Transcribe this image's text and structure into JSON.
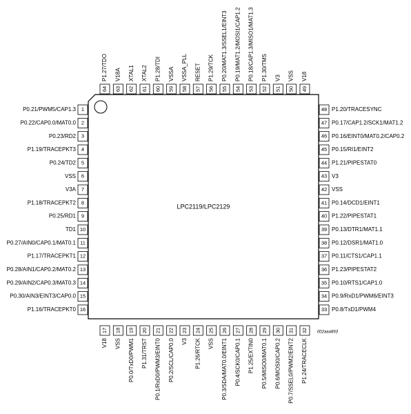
{
  "chip_label": "LPC2119/LPC2129",
  "figure_id": "002aaa693",
  "left_pins": [
    {
      "number": "1",
      "label": "P0.21/PWM5/CAP1.3"
    },
    {
      "number": "2",
      "label": "P0.22/CAP0.0/MAT0.0"
    },
    {
      "number": "3",
      "label": "P0.23/RD2"
    },
    {
      "number": "4",
      "label": "P1.19/TRACEPKT3"
    },
    {
      "number": "5",
      "label": "P0.24/TD2"
    },
    {
      "number": "6",
      "label": "VSS"
    },
    {
      "number": "7",
      "label": "V3A"
    },
    {
      "number": "8",
      "label": "P1.18/TRACEPKT2"
    },
    {
      "number": "9",
      "label": "P0.25/RD1"
    },
    {
      "number": "10",
      "label": "TD1"
    },
    {
      "number": "11",
      "label": "P0.27/AIN0/CAP0.1/MAT0.1"
    },
    {
      "number": "12",
      "label": "P1.17/TRACEPKT1"
    },
    {
      "number": "13",
      "label": "P0.28/AIN1/CAP0.2/MAT0.2"
    },
    {
      "number": "14",
      "label": "P0.29/AIN2/CAP0.3/MAT0.3"
    },
    {
      "number": "15",
      "label": "P0.30/AIN3/EINT3/CAP0.0"
    },
    {
      "number": "16",
      "label": "P1.16/TRACEPKT0"
    }
  ],
  "bottom_pins": [
    {
      "number": "17",
      "label": "V18"
    },
    {
      "number": "18",
      "label": "VSS"
    },
    {
      "number": "19",
      "label": "P0.0/TxD0/PWM1"
    },
    {
      "number": "20",
      "label": "P1.31/TRST"
    },
    {
      "number": "21",
      "label": "P0.1/RxD0/PWM3/EINT0"
    },
    {
      "number": "22",
      "label": "P0.2/SCL/CAP0.0"
    },
    {
      "number": "23",
      "label": "V3"
    },
    {
      "number": "24",
      "label": "P1.26/RTCK"
    },
    {
      "number": "25",
      "label": "VSS"
    },
    {
      "number": "26",
      "label": "P0.3/SDA/MAT0.0/EINT1"
    },
    {
      "number": "27",
      "label": "P0.4/SCK0/CAP0.1"
    },
    {
      "number": "28",
      "label": "P1.25/EXTIN0"
    },
    {
      "number": "29",
      "label": "P0.5/MISO0/MAT0.1"
    },
    {
      "number": "30",
      "label": "P0.6/MOSI0/CAP0.2"
    },
    {
      "number": "31",
      "label": "P0.7/SSEL0/PWM2/EINT2"
    },
    {
      "number": "32",
      "label": "P1.24/TRACECLK"
    }
  ],
  "right_pins": [
    {
      "number": "48",
      "label": "P1.20/TRACESYNC"
    },
    {
      "number": "47",
      "label": "P0.17/CAP1.2/SCK1/MAT1.2"
    },
    {
      "number": "46",
      "label": "P0.16/EINT0/MAT0.2/CAP0.2"
    },
    {
      "number": "45",
      "label": "P0.15/RI1/EINT2"
    },
    {
      "number": "44",
      "label": "P1.21/PIPESTAT0"
    },
    {
      "number": "43",
      "label": "V3"
    },
    {
      "number": "42",
      "label": "VSS"
    },
    {
      "number": "41",
      "label": "P0.14/DCD1/EINT1"
    },
    {
      "number": "40",
      "label": "P1.22/PIPESTAT1"
    },
    {
      "number": "39",
      "label": "P0.13/DTR1/MAT1.1"
    },
    {
      "number": "38",
      "label": "P0.12/DSR1/MAT1.0"
    },
    {
      "number": "37",
      "label": "P0.11/CTS1/CAP1.1"
    },
    {
      "number": "36",
      "label": "P1.23/PIPESTAT2"
    },
    {
      "number": "35",
      "label": "P0.10/RTS1/CAP1.0"
    },
    {
      "number": "34",
      "label": "P0.9/RxD1/PWM6/EINT3"
    },
    {
      "number": "33",
      "label": "P0.8/TxD1/PWM4"
    }
  ],
  "top_pins": [
    {
      "number": "64",
      "label": "P1.27/TDO"
    },
    {
      "number": "63",
      "label": "V18A"
    },
    {
      "number": "62",
      "label": "XTAL1"
    },
    {
      "number": "61",
      "label": "XTAL2"
    },
    {
      "number": "60",
      "label": "P1.28/TDI"
    },
    {
      "number": "59",
      "label": "VSSA"
    },
    {
      "number": "58",
      "label": "VSSA_PLL"
    },
    {
      "number": "57",
      "label": "RESET"
    },
    {
      "number": "56",
      "label": "P1.29/TCK"
    },
    {
      "number": "55",
      "label": "P0.20/MAT1.3/SSEL1/EINT3"
    },
    {
      "number": "54",
      "label": "P0.19/MAT1.2/MOSI1/CAP1.2"
    },
    {
      "number": "53",
      "label": "P0.18/CAP1.3/MISO1/MAT1.3"
    },
    {
      "number": "52",
      "label": "P1.30/TMS"
    },
    {
      "number": "51",
      "label": "V3"
    },
    {
      "number": "50",
      "label": "VSS"
    },
    {
      "number": "49",
      "label": "V18"
    }
  ]
}
